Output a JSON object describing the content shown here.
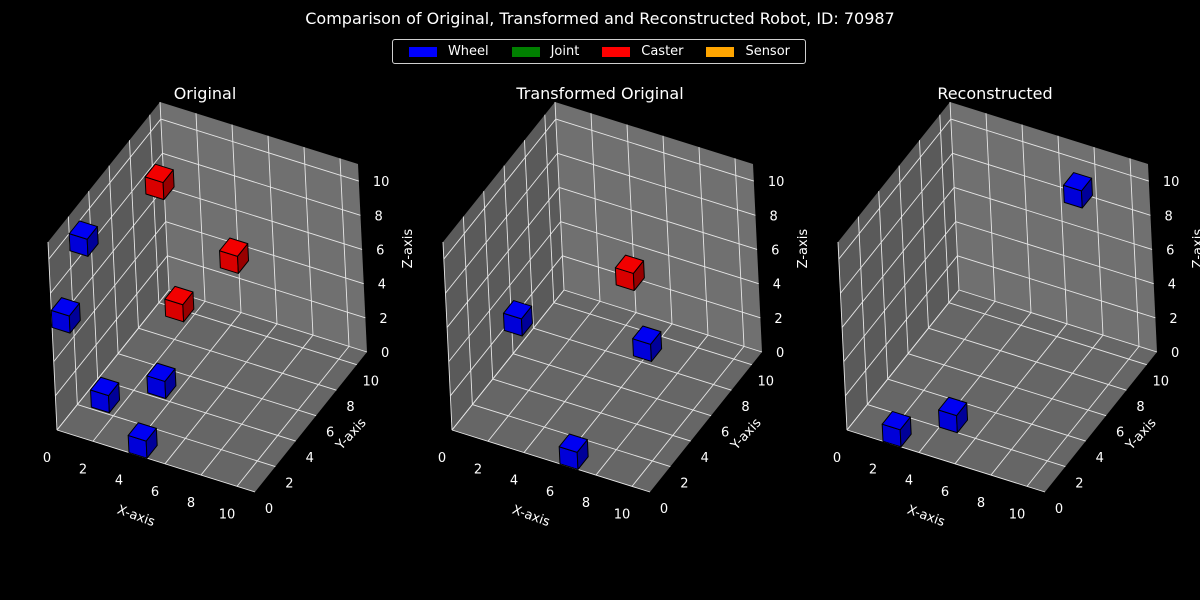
{
  "title": "Comparison of Original, Transformed and Reconstructed Robot, ID: 70987",
  "legend": [
    {
      "label": "Wheel",
      "color": "#0000ff"
    },
    {
      "label": "Joint",
      "color": "#008000"
    },
    {
      "label": "Caster",
      "color": "#ff0000"
    },
    {
      "label": "Sensor",
      "color": "#ffa500"
    }
  ],
  "chart_data": [
    {
      "type": "scatter",
      "title": "Original",
      "xlabel": "X-axis",
      "ylabel": "Y-axis",
      "zlabel": "Z-axis",
      "xlim": [
        0,
        11
      ],
      "ylim": [
        0,
        11
      ],
      "zlim": [
        0,
        11
      ],
      "ticks": [
        0,
        2,
        4,
        6,
        8,
        10
      ],
      "points": [
        {
          "x": 0,
          "y": 2,
          "z": 9,
          "type": "Wheel"
        },
        {
          "x": 0,
          "y": 0,
          "z": 6,
          "type": "Wheel"
        },
        {
          "x": 2,
          "y": 0,
          "z": 2,
          "type": "Wheel"
        },
        {
          "x": 4,
          "y": 2,
          "z": 2,
          "type": "Wheel"
        },
        {
          "x": 4,
          "y": 0,
          "z": 0,
          "type": "Wheel"
        },
        {
          "x": 2,
          "y": 6,
          "z": 10,
          "type": "Caster"
        },
        {
          "x": 4,
          "y": 4,
          "z": 5,
          "type": "Caster"
        },
        {
          "x": 6,
          "y": 6,
          "z": 7,
          "type": "Caster"
        }
      ]
    },
    {
      "type": "scatter",
      "title": "Transformed Original",
      "xlabel": "X-axis",
      "ylabel": "Y-axis",
      "zlabel": "Z-axis",
      "xlim": [
        0,
        11
      ],
      "ylim": [
        0,
        11
      ],
      "zlim": [
        0,
        11
      ],
      "ticks": [
        0,
        2,
        4,
        6,
        8,
        10
      ],
      "points": [
        {
          "x": 2,
          "y": 2,
          "z": 5,
          "type": "Wheel"
        },
        {
          "x": 6,
          "y": 0,
          "z": 0,
          "type": "Wheel"
        },
        {
          "x": 8,
          "y": 4,
          "z": 4,
          "type": "Wheel"
        },
        {
          "x": 6,
          "y": 6,
          "z": 6,
          "type": "Caster"
        }
      ]
    },
    {
      "type": "scatter",
      "title": "Reconstructed",
      "xlabel": "X-axis",
      "ylabel": "Y-axis",
      "zlabel": "Z-axis",
      "xlim": [
        0,
        11
      ],
      "ylim": [
        0,
        11
      ],
      "zlim": [
        0,
        11
      ],
      "ticks": [
        0,
        2,
        4,
        6,
        8,
        10
      ],
      "points": [
        {
          "x": 2,
          "y": 0,
          "z": 0,
          "type": "Wheel"
        },
        {
          "x": 4,
          "y": 2,
          "z": 0,
          "type": "Wheel"
        },
        {
          "x": 8,
          "y": 8,
          "z": 10,
          "type": "Wheel"
        }
      ]
    }
  ]
}
